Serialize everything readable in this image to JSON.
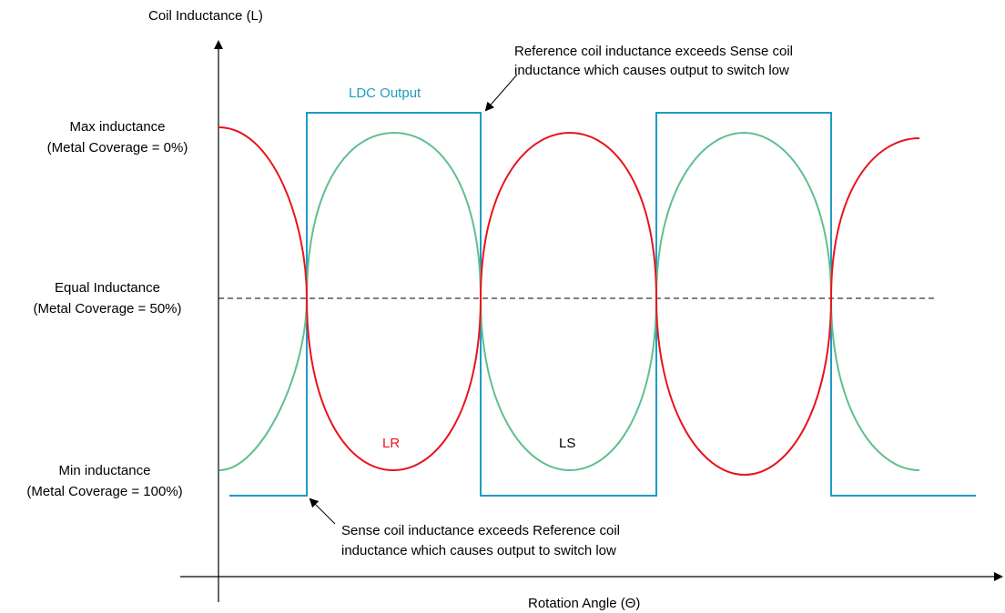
{
  "labels": {
    "y_axis": "Coil Inductance (L)",
    "x_axis": "Rotation Angle (Θ)",
    "max_line1": "Max inductance",
    "max_line2": "(Metal Coverage = 0%)",
    "equal_line1": "Equal Inductance",
    "equal_line2": "(Metal Coverage = 50%)",
    "min_line1": "Min inductance",
    "min_line2": "(Metal Coverage = 100%)",
    "output": "LDC Output",
    "lr": "LR",
    "ls": "LS"
  },
  "annotations": {
    "top_line1": "Reference coil inductance exceeds Sense coil",
    "top_line2": "inductance which causes output to switch low",
    "bottom_line1": "Sense coil inductance exceeds Reference coil",
    "bottom_line2": "inductance which causes output to switch low"
  },
  "colors": {
    "output": "#1e9bc4",
    "lr": "#e8141b",
    "ls": "#5fbf8f"
  }
}
